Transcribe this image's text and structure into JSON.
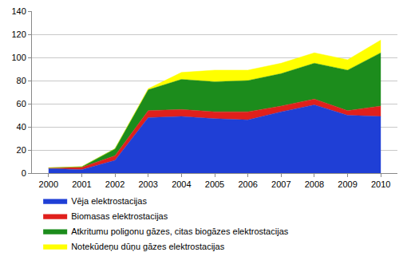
{
  "chart_data": {
    "type": "area",
    "stacked": true,
    "grid": true,
    "legend": "bottom",
    "categories": [
      "2000",
      "2001",
      "2002",
      "2003",
      "2004",
      "2005",
      "2006",
      "2007",
      "2008",
      "2009",
      "2010"
    ],
    "series": [
      {
        "name": "Vēja elektrostacijas",
        "color": "#1f3fd6",
        "values": [
          4,
          3,
          11,
          48,
          49,
          47,
          46,
          53,
          59,
          50,
          49
        ]
      },
      {
        "name": "Biomasas elektrostacijas",
        "color": "#e0201c",
        "values": [
          0.5,
          2,
          4,
          6,
          6,
          6,
          7,
          5,
          5,
          4,
          9
        ]
      },
      {
        "name": "Atkritumu poligonu gāzes, citas biogāzes elektrostacijas",
        "color": "#1c8c1c",
        "values": [
          0,
          0.5,
          6,
          18,
          26,
          26,
          27,
          28,
          31,
          35,
          46
        ]
      },
      {
        "name": "Notekūdeņu dūņu gāzes elektrostacijas",
        "color": "#ffff00",
        "values": [
          0,
          0,
          0,
          1,
          6,
          10,
          9,
          9,
          9,
          9,
          11
        ]
      }
    ],
    "ylim": [
      0,
      140
    ],
    "yticks": [
      0,
      20,
      40,
      60,
      80,
      100,
      120,
      140
    ]
  }
}
